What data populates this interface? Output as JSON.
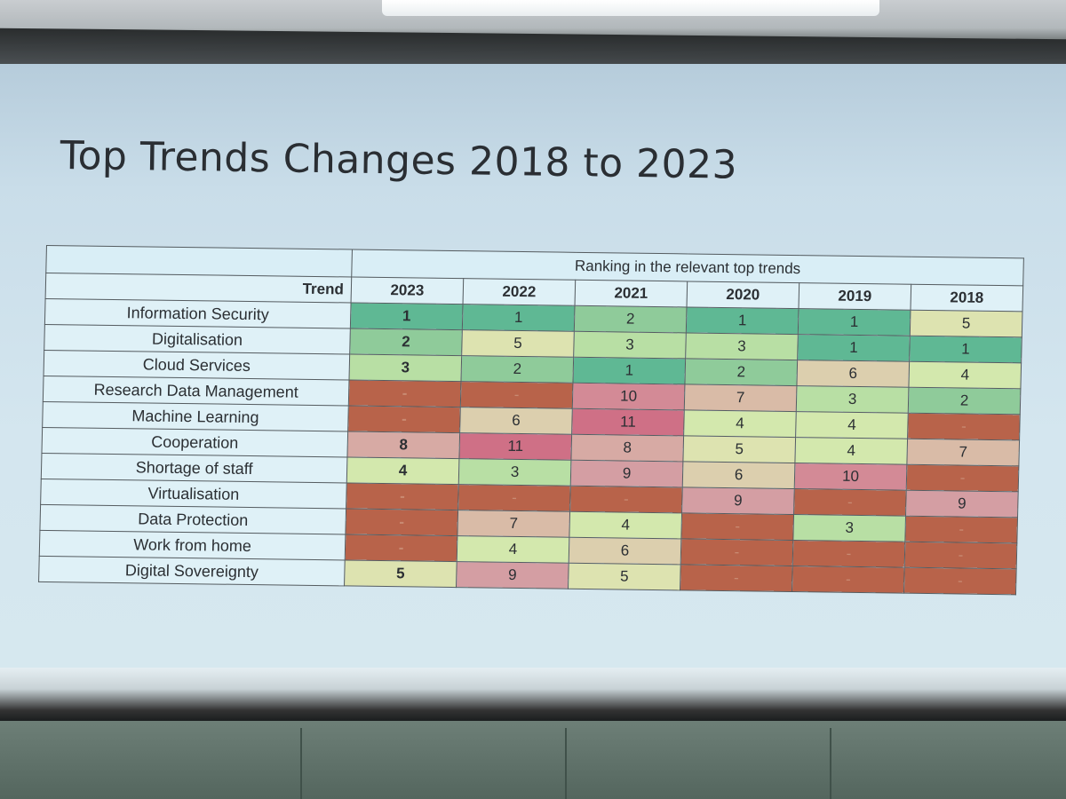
{
  "slide": {
    "title": "Top Trends Changes 2018 to 2023"
  },
  "table": {
    "group_header": "Ranking in the relevant top trends",
    "trend_header": "Trend",
    "years": [
      "2023",
      "2022",
      "2021",
      "2020",
      "2019",
      "2018"
    ],
    "rows": [
      {
        "trend": "Information Security",
        "ranks": [
          "1",
          "1",
          "2",
          "1",
          "1",
          "5"
        ]
      },
      {
        "trend": "Digitalisation",
        "ranks": [
          "2",
          "5",
          "3",
          "3",
          "1",
          "1"
        ]
      },
      {
        "trend": "Cloud Services",
        "ranks": [
          "3",
          "2",
          "1",
          "2",
          "6",
          "4"
        ]
      },
      {
        "trend": "Research Data Management",
        "ranks": [
          "-",
          "-",
          "10",
          "7",
          "3",
          "2"
        ]
      },
      {
        "trend": "Machine Learning",
        "ranks": [
          "-",
          "6",
          "11",
          "4",
          "4",
          "-"
        ]
      },
      {
        "trend": "Cooperation",
        "ranks": [
          "8",
          "11",
          "8",
          "5",
          "4",
          "7"
        ]
      },
      {
        "trend": "Shortage of staff",
        "ranks": [
          "4",
          "3",
          "9",
          "6",
          "10",
          "-"
        ]
      },
      {
        "trend": "Virtualisation",
        "ranks": [
          "-",
          "-",
          "-",
          "9",
          "-",
          "9"
        ]
      },
      {
        "trend": "Data Protection",
        "ranks": [
          "-",
          "7",
          "4",
          "-",
          "3",
          "-"
        ]
      },
      {
        "trend": "Work from home",
        "ranks": [
          "-",
          "4",
          "6",
          "-",
          "-",
          "-"
        ]
      },
      {
        "trend": "Digital Sovereignty",
        "ranks": [
          "5",
          "9",
          "5",
          "-",
          "-",
          "-"
        ]
      }
    ]
  },
  "colors": {
    "rank_1": "#5fb894",
    "rank_2": "#8fcb9a",
    "rank_3": "#b8dfa4",
    "rank_4": "#d3e8ad",
    "rank_5": "#dde3b0",
    "rank_6": "#dccfae",
    "rank_7": "#d9bba7",
    "rank_8": "#d7aaa4",
    "rank_9": "#d49ea3",
    "rank_10": "#d38a96",
    "rank_11": "#cf7086",
    "rank_none": "#b8634a"
  }
}
